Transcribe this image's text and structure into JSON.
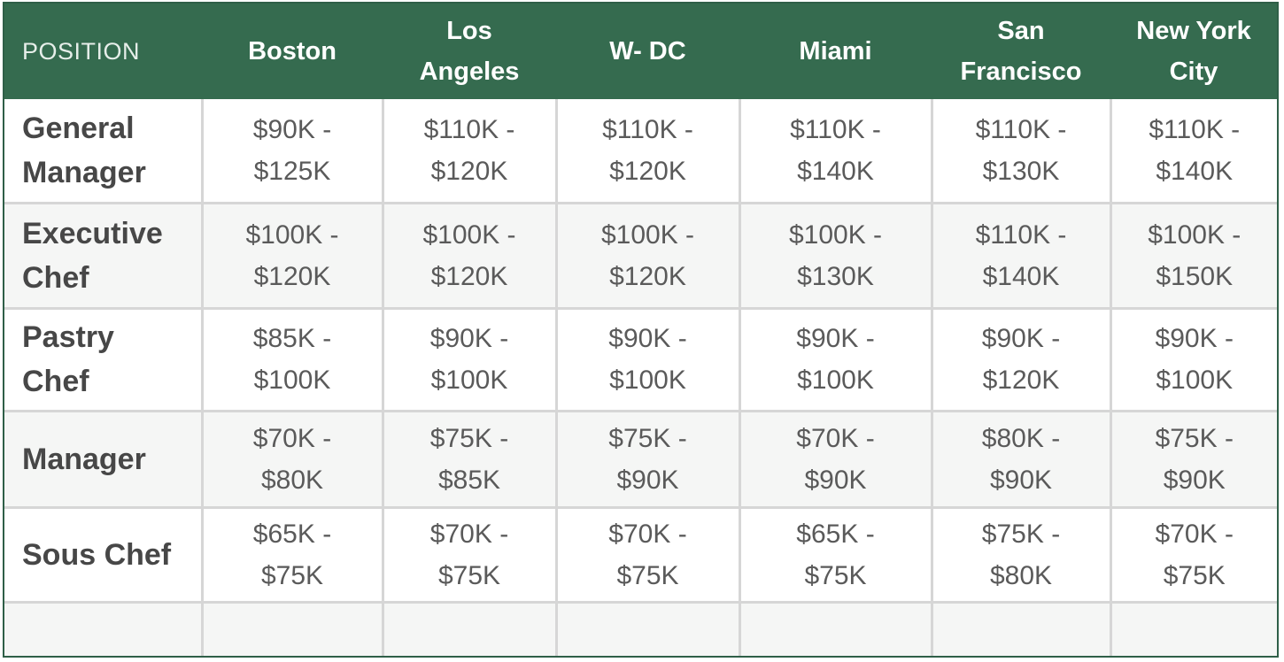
{
  "table": {
    "header": {
      "position_label": "POSITION",
      "cities": [
        [
          "Boston"
        ],
        [
          "Los",
          "Angeles"
        ],
        [
          "W- DC"
        ],
        [
          "Miami"
        ],
        [
          "San",
          "Francisco"
        ],
        [
          "New York",
          "City"
        ]
      ]
    },
    "rows": [
      {
        "position": [
          "General",
          "Manager"
        ],
        "salaries": [
          [
            "$90K -",
            "$125K"
          ],
          [
            "$110K -",
            "$120K"
          ],
          [
            "$110K -",
            "$120K"
          ],
          [
            "$110K -",
            "$140K"
          ],
          [
            "$110K -",
            "$130K"
          ],
          [
            "$110K -",
            "$140K"
          ]
        ]
      },
      {
        "position": [
          "Executive",
          "Chef"
        ],
        "salaries": [
          [
            "$100K -",
            "$120K"
          ],
          [
            "$100K -",
            "$120K"
          ],
          [
            "$100K -",
            "$120K"
          ],
          [
            "$100K -",
            "$130K"
          ],
          [
            "$110K -",
            "$140K"
          ],
          [
            "$100K -",
            "$150K"
          ]
        ]
      },
      {
        "position": [
          "Pastry",
          "Chef"
        ],
        "salaries": [
          [
            "$85K -",
            "$100K"
          ],
          [
            "$90K -",
            "$100K"
          ],
          [
            "$90K -",
            "$100K"
          ],
          [
            "$90K -",
            "$100K"
          ],
          [
            "$90K -",
            "$120K"
          ],
          [
            "$90K -",
            "$100K"
          ]
        ]
      },
      {
        "position": [
          "Manager"
        ],
        "salaries": [
          [
            "$70K -",
            "$80K"
          ],
          [
            "$75K -",
            "$85K"
          ],
          [
            "$75K -",
            "$90K"
          ],
          [
            "$70K -",
            "$90K"
          ],
          [
            "$80K -",
            "$90K"
          ],
          [
            "$75K -",
            "$90K"
          ]
        ]
      },
      {
        "position": [
          "Sous Chef"
        ],
        "salaries": [
          [
            "$65K -",
            "$75K"
          ],
          [
            "$70K -",
            "$75K"
          ],
          [
            "$70K -",
            "$75K"
          ],
          [
            "$65K -",
            "$75K"
          ],
          [
            "$75K -",
            "$80K"
          ],
          [
            "$70K -",
            "$75K"
          ]
        ]
      }
    ],
    "colors": {
      "header_background": "#356b4f",
      "border": "#2f5f48",
      "grid_line": "#d6d6d6",
      "stripe": "#f5f6f5"
    }
  }
}
